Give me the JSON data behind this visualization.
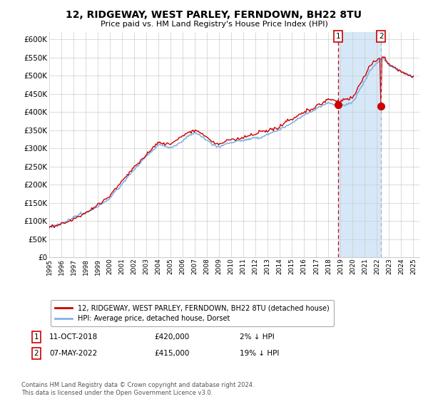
{
  "title_line1": "12, RIDGEWAY, WEST PARLEY, FERNDOWN, BH22 8TU",
  "title_line2": "Price paid vs. HM Land Registry's House Price Index (HPI)",
  "ylim": [
    0,
    620000
  ],
  "yticks": [
    0,
    50000,
    100000,
    150000,
    200000,
    250000,
    300000,
    350000,
    400000,
    450000,
    500000,
    550000,
    600000
  ],
  "xlabel_ticks": [
    "1995",
    "1996",
    "1997",
    "1998",
    "1999",
    "2000",
    "2001",
    "2002",
    "2003",
    "2004",
    "2005",
    "2006",
    "2007",
    "2008",
    "2009",
    "2010",
    "2011",
    "2012",
    "2013",
    "2014",
    "2015",
    "2016",
    "2017",
    "2018",
    "2019",
    "2020",
    "2021",
    "2022",
    "2023",
    "2024",
    "2025"
  ],
  "hpi_color": "#7fb3e8",
  "hpi_fill_color": "#d6e8f7",
  "price_color": "#cc0000",
  "annotation_color": "#cc0000",
  "bg_color": "#ffffff",
  "grid_color": "#cccccc",
  "legend_label_price": "12, RIDGEWAY, WEST PARLEY, FERNDOWN, BH22 8TU (detached house)",
  "legend_label_hpi": "HPI: Average price, detached house, Dorset",
  "sale1_date": "11-OCT-2018",
  "sale1_price": "£420,000",
  "sale1_hpi": "2% ↓ HPI",
  "sale1_year": 2018.78,
  "sale1_value": 420000,
  "sale2_date": "07-MAY-2022",
  "sale2_price": "£415,000",
  "sale2_hpi": "19% ↓ HPI",
  "sale2_year": 2022.35,
  "sale2_value": 415000,
  "footnote": "Contains HM Land Registry data © Crown copyright and database right 2024.\nThis data is licensed under the Open Government Licence v3.0."
}
